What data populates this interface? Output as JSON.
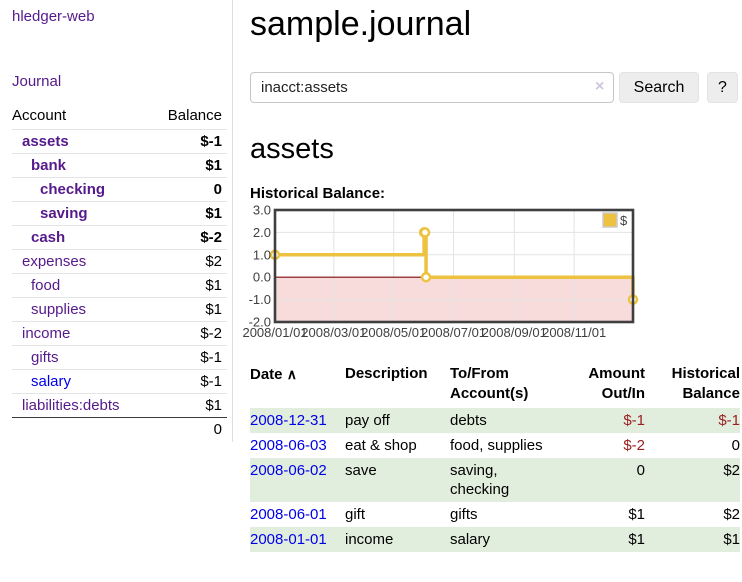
{
  "app": {
    "brand": "hledger-web",
    "nav": {
      "journal": "Journal"
    }
  },
  "sidebar": {
    "columns": {
      "account": "Account",
      "balance": "Balance"
    },
    "accounts": [
      {
        "name": "assets",
        "balance": "$-1",
        "indent": 0,
        "bold": true,
        "negative": "strong"
      },
      {
        "name": "bank",
        "balance": "$1",
        "indent": 1,
        "bold": true
      },
      {
        "name": "checking",
        "balance": "0",
        "indent": 2,
        "bold": true
      },
      {
        "name": "saving",
        "balance": "$1",
        "indent": 2,
        "bold": true
      },
      {
        "name": "cash",
        "balance": "$-2",
        "indent": 1,
        "bold": true,
        "negative": "strong"
      },
      {
        "name": "expenses",
        "balance": "$2",
        "indent": 0
      },
      {
        "name": "food",
        "balance": "$1",
        "indent": 1
      },
      {
        "name": "supplies",
        "balance": "$1",
        "indent": 1
      },
      {
        "name": "income",
        "balance": "$-2",
        "indent": 0,
        "negative": "muted"
      },
      {
        "name": "gifts",
        "balance": "$-1",
        "indent": 1,
        "negative": "muted"
      },
      {
        "name": "salary",
        "balance": "$-1",
        "indent": 1,
        "negative": "muted",
        "link_color": "blue"
      },
      {
        "name": "liabilities:debts",
        "balance": "$1",
        "indent": 0
      }
    ],
    "total": "0"
  },
  "header": {
    "title": "sample.journal"
  },
  "search": {
    "value": "inacct:assets",
    "clear_icon": "×",
    "button_label": "Search",
    "help_label": "?"
  },
  "account_page": {
    "heading": "assets",
    "chart_title": "Historical Balance:"
  },
  "chart_data": {
    "type": "line",
    "line_style": "step",
    "title": "Historical Balance:",
    "x_start": "2008-01-01",
    "x_end": "2008-12-31",
    "ylim": [
      -2.0,
      3.0
    ],
    "y_ticks": [
      "3.0",
      "2.0",
      "1.0",
      "0.0",
      "-1.0",
      "-2.0"
    ],
    "x_ticks": [
      "2008/01/01",
      "2008/03/01",
      "2008/05/01",
      "2008/07/01",
      "2008/09/01",
      "2008/11/01"
    ],
    "grid": true,
    "negative_region_color": "#f8dbdb",
    "zero_line_color": "#7e0b0b",
    "legend": {
      "position": "top-right"
    },
    "series": [
      {
        "name": "$",
        "color": "#edc240",
        "points": [
          {
            "date": "2008-01-01",
            "value": 1
          },
          {
            "date": "2008-06-01",
            "value": 2
          },
          {
            "date": "2008-06-02",
            "value": 2
          },
          {
            "date": "2008-06-03",
            "value": 0
          },
          {
            "date": "2008-12-31",
            "value": -1
          }
        ]
      }
    ]
  },
  "register": {
    "sort_indicator": "∧",
    "columns": [
      "Date",
      "Description",
      "To/From Account(s)",
      "Amount Out/In",
      "Historical Balance"
    ],
    "rows": [
      {
        "date": "2008-12-31",
        "description": "pay off",
        "accounts": "debts",
        "amount": "$-1",
        "balance": "$-1",
        "amount_negative": true,
        "balance_negative": true
      },
      {
        "date": "2008-06-03",
        "description": "eat & shop",
        "accounts": "food, supplies",
        "amount": "$-2",
        "balance": "0",
        "amount_negative": true
      },
      {
        "date": "2008-06-02",
        "description": "save",
        "accounts": "saving, checking",
        "amount": "0",
        "balance": "$2"
      },
      {
        "date": "2008-06-01",
        "description": "gift",
        "accounts": "gifts",
        "amount": "$1",
        "balance": "$2"
      },
      {
        "date": "2008-01-01",
        "description": "income",
        "accounts": "salary",
        "amount": "$1",
        "balance": "$1"
      }
    ]
  }
}
